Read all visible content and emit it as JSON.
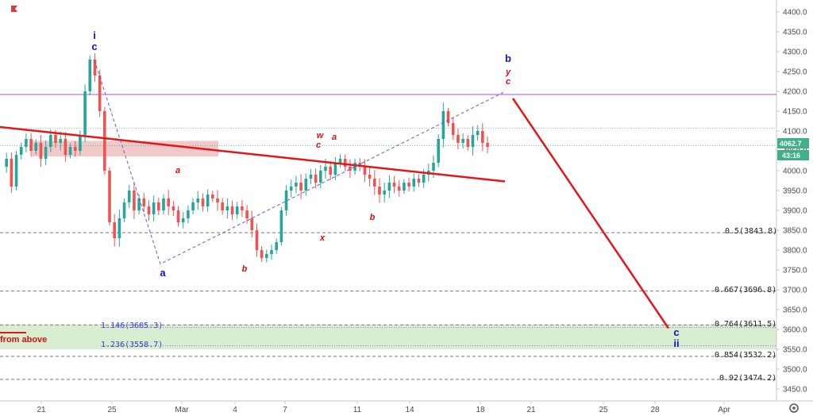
{
  "chart_data": {
    "type": "line",
    "title": "",
    "y_ticks": [
      "4400.0",
      "4350.0",
      "4300.0",
      "4250.0",
      "4200.0",
      "4150.0",
      "4100.0",
      "4050.0",
      "4000.0",
      "3950.0",
      "3900.0",
      "3850.0",
      "3800.0",
      "3750.0",
      "3700.0",
      "3650.0",
      "3600.0",
      "3550.0",
      "3500.0",
      "3450.0"
    ],
    "x_ticks": [
      "21",
      "25",
      "Mar",
      "4",
      "7",
      "11",
      "14",
      "18",
      "21",
      "25",
      "28",
      "Apr"
    ],
    "current_price": "4062.7",
    "countdown": "43:16",
    "fib_levels": [
      {
        "label": "0.5(3843.8)",
        "value": 3843.8
      },
      {
        "label": "0.667(3696.8)",
        "value": 3696.8
      },
      {
        "label": "0.764(3611.5)",
        "value": 3611.5
      },
      {
        "label": "0.854(3532.2)",
        "value": 3532.2
      },
      {
        "label": "0.92(3474.2)",
        "value": 3474.2
      }
    ],
    "extensions": [
      {
        "label": "1.146(3605.3)",
        "value": 3605.3
      },
      {
        "label": "1.236(3558.7)",
        "value": 3558.7
      }
    ],
    "zone_label": "from above",
    "resistance_level": 4192,
    "price_line_level": 4107,
    "wave_labels": [
      {
        "text": "i",
        "color": "#1010c8"
      },
      {
        "text": "c",
        "color": "#1010c8"
      },
      {
        "text": "a",
        "color": "#1010c8"
      },
      {
        "text": "a",
        "color": "#d01010"
      },
      {
        "text": "b",
        "color": "#d01010"
      },
      {
        "text": "w",
        "color": "#d01010"
      },
      {
        "text": "c",
        "color": "#d01010"
      },
      {
        "text": "a",
        "color": "#d01010"
      },
      {
        "text": "x",
        "color": "#d01010"
      },
      {
        "text": "b",
        "color": "#d01010"
      },
      {
        "text": "b",
        "color": "#1010c8"
      },
      {
        "text": "y",
        "color": "#d01010"
      },
      {
        "text": "c",
        "color": "#d01010"
      },
      {
        "text": "c",
        "color": "#1010c8"
      },
      {
        "text": "ii",
        "color": "#1010c8"
      }
    ],
    "price_path": [
      4010,
      4030,
      3960,
      4040,
      4060,
      4080,
      4050,
      4070,
      4030,
      4060,
      4090,
      4070,
      4080,
      4040,
      4060,
      4050,
      4090,
      4200,
      4280,
      4240,
      4150,
      4000,
      3870,
      3830,
      3880,
      3920,
      3950,
      3900,
      3930,
      3910,
      3890,
      3920,
      3900,
      3930,
      3910,
      3900,
      3870,
      3880,
      3900,
      3920,
      3930,
      3910,
      3940,
      3930,
      3920,
      3900,
      3910,
      3890,
      3910,
      3900,
      3880,
      3850,
      3800,
      3780,
      3790,
      3800,
      3820,
      3900,
      3950,
      3960,
      3970,
      3950,
      3980,
      3990,
      3970,
      4000,
      4010,
      3990,
      4020,
      4030,
      4010,
      4000,
      4020,
      4010,
      3990,
      3980,
      3960,
      3940,
      3950,
      3970,
      3960,
      3950,
      3970,
      3960,
      3980,
      3970,
      3990,
      4000,
      4020,
      4080,
      4150,
      4120,
      4090,
      4070,
      4080,
      4060,
      4090,
      4100,
      4070,
      4060
    ],
    "colors": {
      "up": "#26a69a",
      "down": "#ef5350",
      "resistance": "#c090ea",
      "trend": "#e01818",
      "wave_blue": "#1010c8",
      "wave_red": "#d01010",
      "price_tag": "#3fb088"
    }
  }
}
